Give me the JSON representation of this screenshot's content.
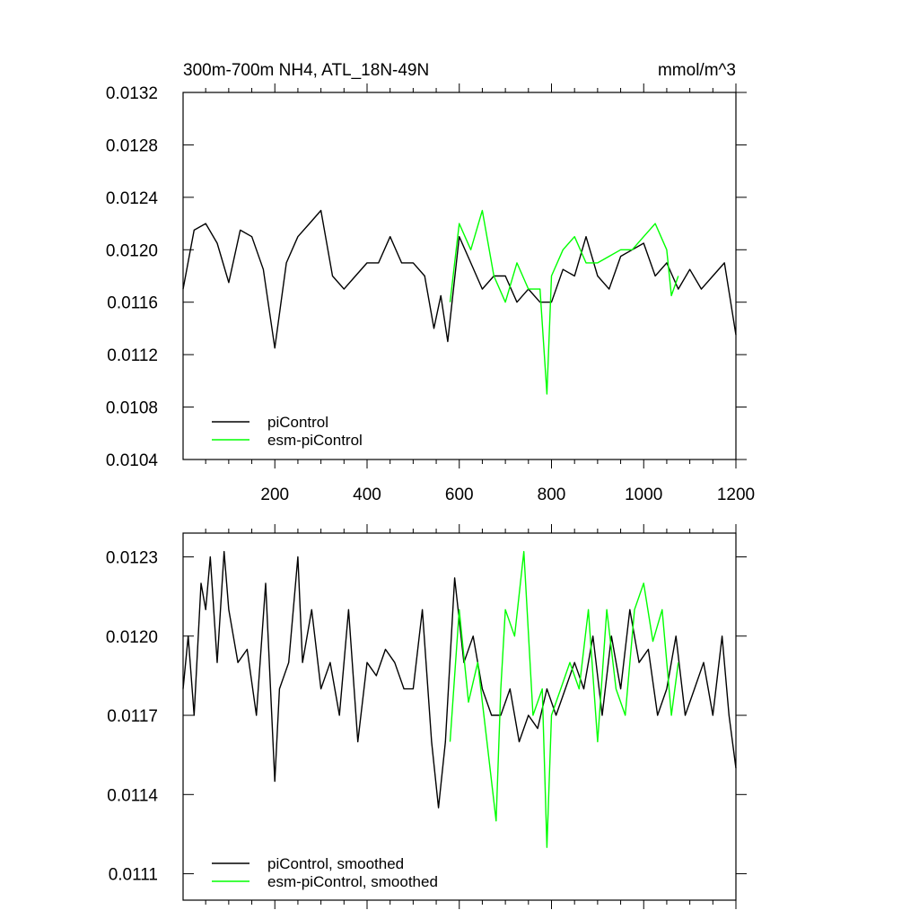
{
  "chart_data": [
    {
      "type": "line",
      "title": "300m-700m NH4, ATL_18N-49N",
      "units": "mmol/m^3",
      "xlim": [
        1,
        1200
      ],
      "ylim": [
        0.0104,
        0.0132
      ],
      "x_ticks": [
        200,
        400,
        600,
        800,
        1000,
        1200
      ],
      "y_ticks": [
        0.0104,
        0.0108,
        0.0112,
        0.0116,
        0.012,
        0.0124,
        0.0128,
        0.0132
      ],
      "y_tick_labels": [
        "0.0104",
        "0.0108",
        "0.0112",
        "0.0116",
        "0.0120",
        "0.0124",
        "0.0128",
        "0.0132"
      ],
      "x_tick_labels": [
        "200",
        "400",
        "600",
        "800",
        "1000",
        "1200"
      ],
      "legend": {
        "placement": "bottom-left"
      },
      "series": [
        {
          "name": "piControl",
          "color": "#000000",
          "x": [
            1,
            25,
            50,
            75,
            100,
            125,
            150,
            175,
            200,
            225,
            250,
            275,
            300,
            325,
            350,
            375,
            400,
            425,
            450,
            475,
            500,
            525,
            545,
            560,
            575,
            600,
            625,
            650,
            675,
            700,
            725,
            750,
            775,
            800,
            825,
            850,
            875,
            900,
            925,
            950,
            975,
            1000,
            1025,
            1050,
            1075,
            1100,
            1125,
            1150,
            1175,
            1200
          ],
          "y": [
            0.0117,
            0.01215,
            0.0122,
            0.01205,
            0.01175,
            0.01215,
            0.0121,
            0.01185,
            0.01125,
            0.0119,
            0.0121,
            0.0122,
            0.0123,
            0.0118,
            0.0117,
            0.0118,
            0.0119,
            0.0119,
            0.0121,
            0.0119,
            0.0119,
            0.0118,
            0.0114,
            0.01165,
            0.0113,
            0.0121,
            0.0119,
            0.0117,
            0.0118,
            0.0118,
            0.0116,
            0.0117,
            0.0116,
            0.0116,
            0.01185,
            0.0118,
            0.0121,
            0.0118,
            0.0117,
            0.01195,
            0.012,
            0.01205,
            0.0118,
            0.0119,
            0.0117,
            0.01185,
            0.0117,
            0.0118,
            0.0119,
            0.01135
          ]
        },
        {
          "name": "esm-piControl",
          "color": "#00ff00",
          "x": [
            580,
            600,
            625,
            650,
            675,
            700,
            725,
            750,
            775,
            790,
            800,
            825,
            850,
            875,
            900,
            925,
            950,
            975,
            1000,
            1025,
            1050,
            1060,
            1075
          ],
          "y": [
            0.0116,
            0.0122,
            0.012,
            0.0123,
            0.0118,
            0.0116,
            0.0119,
            0.0117,
            0.0117,
            0.0109,
            0.0118,
            0.012,
            0.0121,
            0.0119,
            0.0119,
            0.01195,
            0.012,
            0.012,
            0.0121,
            0.0122,
            0.012,
            0.01165,
            0.0118
          ]
        }
      ]
    },
    {
      "type": "line",
      "title": "",
      "xlim": [
        1,
        1200
      ],
      "ylim": [
        0.011,
        0.01239
      ],
      "x_ticks": [
        200,
        400,
        600,
        800,
        1000,
        1200
      ],
      "y_ticks": [
        0.0111,
        0.0114,
        0.0117,
        0.012,
        0.0123
      ],
      "y_tick_labels": [
        "0.0111",
        "0.0114",
        "0.0117",
        "0.0120",
        "0.0123"
      ],
      "legend": {
        "placement": "bottom-left"
      },
      "series": [
        {
          "name": "piControl, smoothed",
          "color": "#000000",
          "x": [
            1,
            12,
            25,
            40,
            50,
            60,
            75,
            90,
            100,
            120,
            140,
            160,
            180,
            200,
            210,
            230,
            250,
            260,
            280,
            300,
            320,
            340,
            360,
            380,
            400,
            420,
            440,
            460,
            480,
            500,
            520,
            540,
            555,
            570,
            590,
            610,
            630,
            650,
            670,
            690,
            710,
            730,
            750,
            770,
            790,
            810,
            830,
            850,
            870,
            890,
            910,
            930,
            950,
            970,
            990,
            1010,
            1030,
            1050,
            1070,
            1090,
            1110,
            1130,
            1150,
            1170,
            1185,
            1200
          ],
          "y": [
            0.0118,
            0.012,
            0.0117,
            0.0122,
            0.0121,
            0.0123,
            0.0119,
            0.01232,
            0.0121,
            0.0119,
            0.01195,
            0.0117,
            0.0122,
            0.01145,
            0.0118,
            0.0119,
            0.0123,
            0.0119,
            0.0121,
            0.0118,
            0.0119,
            0.0117,
            0.0121,
            0.0116,
            0.0119,
            0.01185,
            0.01195,
            0.0119,
            0.0118,
            0.0118,
            0.0121,
            0.0116,
            0.01135,
            0.0116,
            0.01222,
            0.0119,
            0.012,
            0.0118,
            0.0117,
            0.0117,
            0.0118,
            0.0116,
            0.0117,
            0.01165,
            0.0118,
            0.0117,
            0.0118,
            0.0119,
            0.0118,
            0.012,
            0.0117,
            0.012,
            0.0118,
            0.0121,
            0.0119,
            0.01195,
            0.0117,
            0.0118,
            0.012,
            0.0117,
            0.0118,
            0.0119,
            0.0117,
            0.012,
            0.0117,
            0.0115
          ]
        },
        {
          "name": "esm-piControl, smoothed",
          "color": "#00ff00",
          "x": [
            580,
            600,
            620,
            640,
            660,
            680,
            690,
            700,
            720,
            740,
            760,
            780,
            790,
            800,
            820,
            840,
            860,
            880,
            900,
            920,
            940,
            960,
            980,
            1000,
            1020,
            1040,
            1060,
            1075
          ],
          "y": [
            0.0116,
            0.0121,
            0.01175,
            0.0119,
            0.0116,
            0.0113,
            0.0118,
            0.0121,
            0.012,
            0.01232,
            0.0117,
            0.0118,
            0.0112,
            0.0117,
            0.0118,
            0.0119,
            0.0118,
            0.0121,
            0.0116,
            0.0121,
            0.0118,
            0.0117,
            0.0121,
            0.0122,
            0.01198,
            0.0121,
            0.0117,
            0.0119
          ]
        }
      ]
    }
  ]
}
